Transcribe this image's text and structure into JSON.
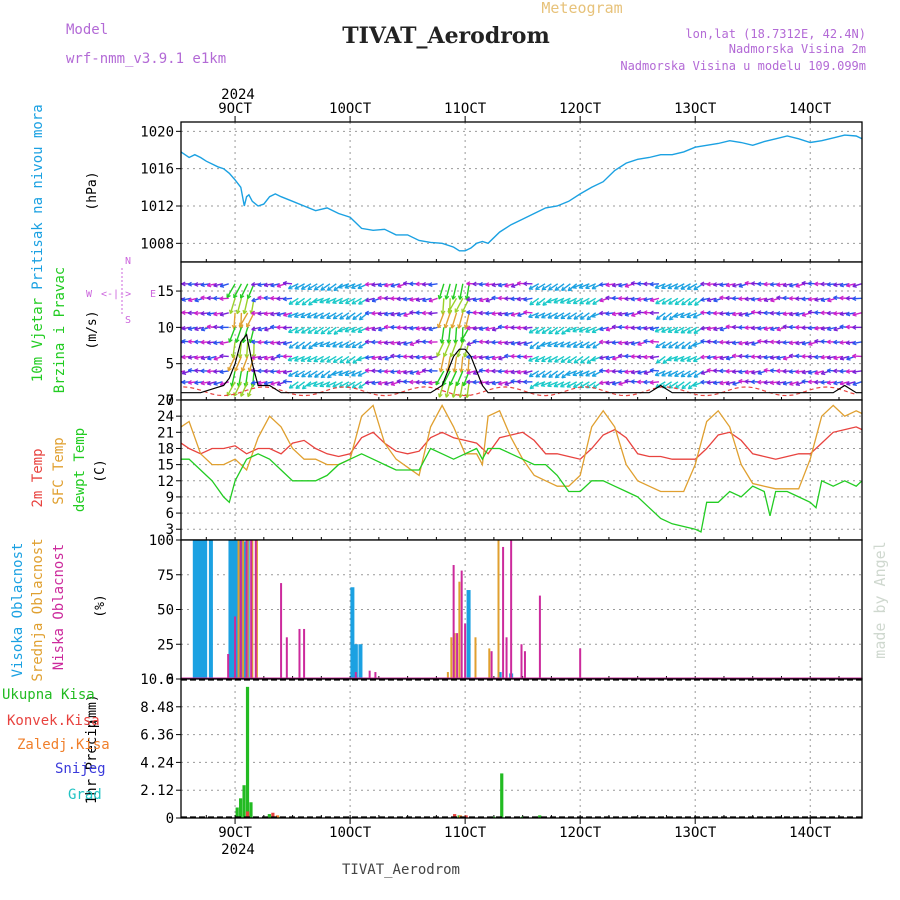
{
  "header": {
    "model_label": "Model",
    "model_name": "wrf-nmm_v3.9.1 e1km",
    "product": "Meteogram",
    "title": "TIVAT_Aerodrom",
    "lonlat": "lon,lat (18.7312E, 42.4N)",
    "elevation": "Nadmorska Visina 2m",
    "model_elevation": "Nadmorska Visina u modelu 109.099m"
  },
  "footer": {
    "station": "TIVAT_Aerodrom",
    "credit": "made by Angel"
  },
  "colors": {
    "pressure": "#1ba1e2",
    "wind_label": "#22cc22",
    "temp2m": "#e8433f",
    "sfc_temp": "#e0a030",
    "dewpt": "#22cc22",
    "high_cloud": "#1ba1e2",
    "mid_cloud": "#e0a030",
    "low_cloud": "#cc2a9c",
    "total_precip": "#22bb22",
    "conv_precip": "#e8433f",
    "frozen_precip": "#f07f2a",
    "snow": "#3a3adb",
    "hail": "#22c3c3",
    "compass": "#cc66dd"
  },
  "chart_data": [
    {
      "type": "line",
      "panel": "pressure",
      "ylabel_parts": [
        "Pritisak na nivou mora",
        "(hPa)"
      ],
      "ylim": [
        1006,
        1021
      ],
      "yticks": [
        1008,
        1012,
        1016,
        1020
      ],
      "xlim_days": [
        8.53,
        14.45
      ],
      "x_tick_labels": [
        "9OCT",
        "10OCT",
        "11OCT",
        "12OCT",
        "13OCT",
        "14OCT"
      ],
      "year_label": "2024",
      "grid": true,
      "series": [
        {
          "x": [
            8.53,
            8.6,
            8.65,
            8.7,
            8.75,
            8.8,
            8.85,
            8.9,
            8.95,
            9.0,
            9.05,
            9.08,
            9.1,
            9.12,
            9.15,
            9.2,
            9.25,
            9.3,
            9.35,
            9.4,
            9.5,
            9.6,
            9.7,
            9.8,
            9.9,
            10.0,
            10.1,
            10.2,
            10.3,
            10.4,
            10.5,
            10.6,
            10.7,
            10.8,
            10.9,
            10.95,
            11.0,
            11.05,
            11.1,
            11.15,
            11.2,
            11.3,
            11.4,
            11.5,
            11.6,
            11.7,
            11.8,
            11.9,
            12.0,
            12.1,
            12.2,
            12.3,
            12.4,
            12.5,
            12.6,
            12.7,
            12.8,
            12.9,
            13.0,
            13.1,
            13.2,
            13.3,
            13.4,
            13.5,
            13.6,
            13.7,
            13.8,
            13.9,
            14.0,
            14.1,
            14.2,
            14.3,
            14.4,
            14.45
          ],
          "values": [
            1017.8,
            1017.2,
            1017.5,
            1017.2,
            1016.8,
            1016.5,
            1016.2,
            1016.0,
            1015.5,
            1014.8,
            1014.0,
            1012.0,
            1013.0,
            1013.2,
            1012.5,
            1012.0,
            1012.2,
            1013.0,
            1013.3,
            1013.0,
            1012.5,
            1012.0,
            1011.5,
            1011.8,
            1011.2,
            1010.8,
            1009.6,
            1009.4,
            1009.5,
            1008.9,
            1008.9,
            1008.3,
            1008.1,
            1008.0,
            1007.6,
            1007.2,
            1007.2,
            1007.5,
            1008.0,
            1008.2,
            1008.0,
            1009.2,
            1010.0,
            1010.6,
            1011.2,
            1011.8,
            1012.0,
            1012.5,
            1013.3,
            1014.0,
            1014.6,
            1015.8,
            1016.6,
            1017.0,
            1017.2,
            1017.5,
            1017.5,
            1017.8,
            1018.3,
            1018.5,
            1018.7,
            1019.0,
            1018.8,
            1018.5,
            1018.9,
            1019.2,
            1019.5,
            1019.2,
            1018.8,
            1019.0,
            1019.3,
            1019.6,
            1019.5,
            1019.2
          ]
        }
      ]
    },
    {
      "type": "line",
      "panel": "wind",
      "ylabel_parts": [
        "10m Vjetar",
        "Brzina i Pravac",
        "(m/s)"
      ],
      "compass_labels": {
        "w": "W",
        "e": "E",
        "n": "N",
        "s": "S",
        "arrows": "<-|->"
      },
      "ylim": [
        0,
        19
      ],
      "yticks": [
        0,
        5,
        10,
        15
      ],
      "series": [
        {
          "name": "speed",
          "x": [
            8.53,
            8.7,
            8.8,
            8.9,
            8.95,
            9.0,
            9.05,
            9.1,
            9.15,
            9.2,
            9.3,
            9.4,
            9.5,
            9.7,
            9.9,
            10.1,
            10.3,
            10.5,
            10.6,
            10.7,
            10.8,
            10.85,
            10.9,
            10.95,
            11.0,
            11.05,
            11.1,
            11.15,
            11.2,
            11.3,
            11.4,
            11.6,
            11.8,
            12.0,
            12.2,
            12.4,
            12.5,
            12.6,
            12.7,
            12.8,
            13.0,
            13.2,
            13.4,
            13.6,
            13.8,
            14.0,
            14.2,
            14.3,
            14.4,
            14.45
          ],
          "values": [
            1,
            1,
            1.5,
            2,
            3,
            5,
            8,
            9,
            5,
            2,
            2,
            1,
            1,
            1,
            1,
            1,
            1,
            1,
            1,
            1,
            2,
            4,
            6,
            7,
            7,
            6,
            4,
            2,
            1,
            1,
            1,
            1,
            1,
            1,
            1,
            1,
            1,
            1,
            2,
            1,
            1,
            1,
            1,
            1,
            1,
            1,
            1,
            2,
            1,
            1
          ]
        }
      ],
      "arrow_colors": [
        "#cc22cc",
        "#7a22d8",
        "#2a55ee",
        "#1ba1e2",
        "#19c9c9",
        "#22cc22",
        "#9ad12a",
        "#e0a030"
      ]
    },
    {
      "type": "line",
      "panel": "temperature",
      "ylabel_parts": [
        "2m Temp",
        "SFC Temp",
        "dewpt Temp",
        "(C)"
      ],
      "ylim": [
        1,
        27
      ],
      "yticks": [
        3,
        6,
        9,
        12,
        15,
        18,
        21,
        24,
        27
      ],
      "series": [
        {
          "name": "2m Temp",
          "x": [
            8.53,
            8.6,
            8.7,
            8.8,
            8.9,
            9.0,
            9.1,
            9.2,
            9.3,
            9.4,
            9.5,
            9.6,
            9.7,
            9.8,
            9.9,
            10.0,
            10.1,
            10.2,
            10.3,
            10.4,
            10.5,
            10.6,
            10.7,
            10.8,
            10.9,
            11.0,
            11.1,
            11.2,
            11.3,
            11.4,
            11.5,
            11.6,
            11.7,
            11.8,
            11.9,
            12.0,
            12.1,
            12.2,
            12.3,
            12.4,
            12.5,
            12.6,
            12.7,
            12.8,
            12.9,
            13.0,
            13.1,
            13.2,
            13.3,
            13.4,
            13.5,
            13.6,
            13.7,
            13.8,
            13.9,
            14.0,
            14.1,
            14.2,
            14.3,
            14.4,
            14.45
          ],
          "values": [
            19,
            18,
            17,
            18,
            18,
            18.5,
            17,
            18,
            18,
            17,
            19,
            19.5,
            18,
            17,
            16.5,
            17,
            20,
            21,
            19,
            17.5,
            17,
            17.5,
            20,
            21,
            20,
            19.5,
            19,
            17,
            20,
            20.5,
            21,
            19.5,
            17,
            17,
            16.5,
            16,
            18,
            20.5,
            21.5,
            20,
            17,
            16.5,
            16.5,
            16,
            16,
            16,
            18,
            20.5,
            21,
            19.5,
            17,
            16.5,
            16,
            16.5,
            17,
            17,
            19,
            21,
            21.5,
            22,
            21.5
          ]
        },
        {
          "name": "SFC Temp",
          "x": [
            8.53,
            8.6,
            8.7,
            8.8,
            8.9,
            9.0,
            9.1,
            9.2,
            9.3,
            9.4,
            9.5,
            9.6,
            9.7,
            9.8,
            9.9,
            10.0,
            10.1,
            10.2,
            10.3,
            10.4,
            10.5,
            10.6,
            10.7,
            10.8,
            10.9,
            11.0,
            11.1,
            11.15,
            11.2,
            11.3,
            11.4,
            11.5,
            11.6,
            11.7,
            11.8,
            11.9,
            12.0,
            12.1,
            12.2,
            12.3,
            12.4,
            12.5,
            12.6,
            12.7,
            12.8,
            12.9,
            13.0,
            13.1,
            13.2,
            13.3,
            13.4,
            13.5,
            13.6,
            13.7,
            13.8,
            13.9,
            14.0,
            14.1,
            14.2,
            14.3,
            14.4,
            14.45
          ],
          "values": [
            22,
            23,
            17,
            15,
            15,
            16,
            14,
            20,
            24,
            22,
            18,
            16,
            16,
            15,
            15,
            16,
            24,
            26,
            19,
            16,
            14.5,
            13,
            22,
            26,
            22,
            17,
            17,
            15,
            24,
            25,
            20,
            16,
            13,
            12,
            11,
            11,
            13,
            22,
            25,
            22,
            15,
            12,
            11,
            10,
            10,
            10,
            15,
            23,
            25,
            22,
            15,
            11.5,
            11,
            10.5,
            10.5,
            10.5,
            16,
            24,
            26,
            24,
            25,
            24.5
          ]
        },
        {
          "name": "dewpt Temp",
          "x": [
            8.53,
            8.6,
            8.7,
            8.75,
            8.8,
            8.9,
            8.95,
            9.0,
            9.1,
            9.2,
            9.3,
            9.4,
            9.5,
            9.6,
            9.7,
            9.8,
            9.9,
            10.0,
            10.1,
            10.2,
            10.3,
            10.4,
            10.5,
            10.6,
            10.7,
            10.8,
            10.9,
            11.0,
            11.1,
            11.15,
            11.2,
            11.3,
            11.4,
            11.5,
            11.6,
            11.7,
            11.8,
            11.9,
            12.0,
            12.1,
            12.2,
            12.3,
            12.4,
            12.5,
            12.6,
            12.7,
            12.8,
            12.9,
            13.0,
            13.05,
            13.1,
            13.2,
            13.3,
            13.4,
            13.5,
            13.6,
            13.65,
            13.7,
            13.8,
            13.9,
            14.0,
            14.05,
            14.1,
            14.2,
            14.3,
            14.4,
            14.45
          ],
          "values": [
            16,
            16,
            14,
            13,
            12,
            9,
            8,
            12,
            16,
            17,
            16,
            14,
            12,
            12,
            12,
            13,
            15,
            16,
            17,
            16,
            15,
            14,
            14,
            14,
            18,
            17,
            16,
            17,
            18,
            16,
            18,
            18,
            17,
            16,
            15,
            15,
            13,
            10,
            10,
            12,
            12,
            11,
            10,
            9,
            7,
            5,
            4,
            3.5,
            3,
            2.5,
            8,
            8,
            10,
            9,
            11,
            10,
            5.5,
            10,
            10,
            9,
            8,
            7,
            12,
            11,
            12,
            11,
            12
          ]
        }
      ]
    },
    {
      "type": "bar",
      "panel": "cloud",
      "ylabel_parts": [
        "Visoka Oblacnost",
        "Srednja Oblacnost",
        "Niska Oblacnost",
        "(%)"
      ],
      "ylim": [
        0,
        100
      ],
      "yticks": [
        0,
        25,
        50,
        75,
        100
      ],
      "series": [
        {
          "name": "Visoka Oblacnost",
          "x": [
            8.65,
            8.68,
            8.71,
            8.74,
            8.79,
            8.96,
            8.98,
            9.0,
            9.02,
            9.04,
            9.06,
            9.08,
            9.11,
            10.02,
            10.05,
            10.09,
            11.03,
            11.3,
            11.4
          ],
          "values": [
            100,
            100,
            100,
            100,
            100,
            100,
            100,
            100,
            100,
            100,
            100,
            99,
            100,
            66,
            25,
            25,
            64,
            5,
            4
          ]
        },
        {
          "name": "Srednja Oblacnost",
          "x": [
            9.03,
            9.07,
            9.11,
            9.15,
            9.19,
            10.85,
            10.88,
            10.91,
            10.95,
            11.09,
            11.21,
            11.29
          ],
          "values": [
            100,
            100,
            100,
            100,
            100,
            5,
            30,
            33,
            70,
            30,
            22,
            100
          ]
        },
        {
          "name": "Niska Oblacnost",
          "x": [
            8.94,
            9.0,
            9.05,
            9.1,
            9.14,
            9.18,
            9.4,
            9.45,
            9.56,
            9.6,
            10.05,
            10.17,
            10.22,
            10.9,
            10.93,
            10.97,
            11.0,
            11.23,
            11.33,
            11.36,
            11.4,
            11.49,
            11.52,
            11.65,
            12.0
          ],
          "values": [
            18,
            45,
            100,
            100,
            100,
            100,
            69,
            30,
            36,
            36,
            5,
            6,
            5,
            82,
            33,
            78,
            40,
            20,
            95,
            30,
            100,
            25,
            20,
            60,
            22
          ]
        }
      ]
    },
    {
      "type": "bar",
      "panel": "precipitation",
      "ylabel_parts": [
        "1hr Precip",
        "(mm)"
      ],
      "legend_labels": [
        "Ukupna Kisa",
        "Konvek.Kisa",
        "Zaledj.Kisa",
        "Snijeg",
        "Grad"
      ],
      "ylim": [
        0,
        10.6
      ],
      "yticks": [
        0,
        2.12,
        4.24,
        6.36,
        8.48,
        10.6
      ],
      "ytick_labels": [
        "0",
        "2.12",
        "4.24",
        "6.36",
        "8.48",
        "10.6"
      ],
      "series": [
        {
          "name": "Ukupna Kisa",
          "x": [
            8.55,
            9.02,
            9.05,
            9.08,
            9.11,
            9.14,
            9.3,
            9.4,
            10.95,
            11.0,
            11.25,
            11.32,
            11.5,
            11.65
          ],
          "values": [
            0.05,
            0.8,
            1.5,
            2.5,
            10.0,
            1.2,
            0.3,
            0.1,
            0.2,
            0.1,
            0.1,
            3.4,
            0.1,
            0.2
          ]
        },
        {
          "name": "Konvek.Kisa",
          "x": [
            9.1,
            9.32,
            10.9,
            11.0
          ],
          "values": [
            0.5,
            0.4,
            0.3,
            0.2
          ]
        },
        {
          "name": "Zaledj.Kisa",
          "x": [
            9.35,
            10.94
          ],
          "values": [
            0.2,
            0.2
          ]
        }
      ]
    }
  ]
}
